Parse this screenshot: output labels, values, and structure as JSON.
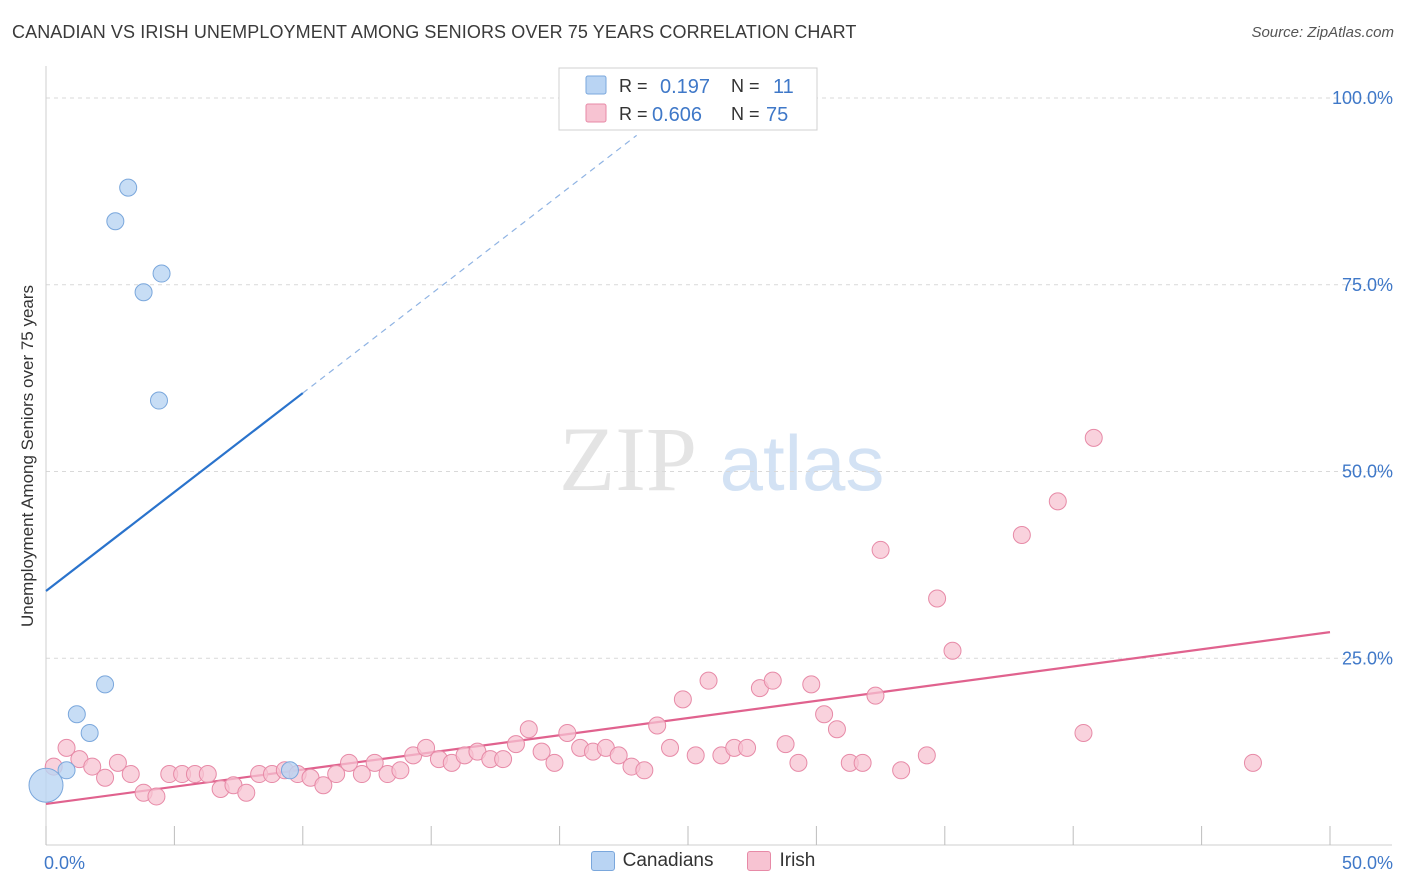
{
  "title": "CANADIAN VS IRISH UNEMPLOYMENT AMONG SENIORS OVER 75 YEARS CORRELATION CHART",
  "source": "Source: ZipAtlas.com",
  "watermark": {
    "zip": "ZIP",
    "atlas": "atlas"
  },
  "colors": {
    "canadians_fill": "#b9d4f3",
    "canadians_stroke": "#7aa7dc",
    "canadians_line": "#2a73cc",
    "irish_fill": "#f7c3d2",
    "irish_stroke": "#e78aa7",
    "irish_line": "#e0628e",
    "value_text": "#3f78c8",
    "grid": "#d9d9d9"
  },
  "legend": {
    "rows": [
      {
        "r_label": "R =",
        "r_value": "0.197",
        "n_label": "N =",
        "n_value": "11"
      },
      {
        "r_label": "R =",
        "r_value": "0.606",
        "n_label": "N =",
        "n_value": "75"
      }
    ]
  },
  "bottom_legend": [
    "Canadians",
    "Irish"
  ],
  "chart_data": {
    "type": "scatter",
    "ylabel": "Unemployment Among Seniors over 75 years",
    "xlim": [
      0,
      50
    ],
    "ylim": [
      0,
      100
    ],
    "x_tick_labels": [
      "0.0%",
      "50.0%"
    ],
    "y_tick_labels": [
      {
        "value": 100,
        "label": "100.0%"
      },
      {
        "value": 75,
        "label": "75.0%"
      },
      {
        "value": 50,
        "label": "50.0%"
      },
      {
        "value": 25,
        "label": "25.0%"
      }
    ],
    "y_gridlines": [
      100,
      75,
      50,
      25
    ],
    "series": [
      {
        "name": "Canadians",
        "points": [
          [
            0.0,
            8.0
          ],
          [
            0.8,
            10.0
          ],
          [
            1.2,
            17.5
          ],
          [
            1.7,
            15.0
          ],
          [
            2.3,
            21.5
          ],
          [
            2.7,
            83.5
          ],
          [
            3.2,
            88.0
          ],
          [
            3.8,
            74.0
          ],
          [
            4.4,
            59.5
          ],
          [
            4.5,
            76.5
          ],
          [
            9.5,
            10.0
          ]
        ],
        "trend": {
          "x0": 0,
          "y0": 34.0,
          "x1": 10.0,
          "y1": 60.5,
          "dash_x1": 23.0,
          "dash_y1": 95.0
        }
      },
      {
        "name": "Irish",
        "points": [
          [
            0.3,
            10.5
          ],
          [
            0.8,
            13.0
          ],
          [
            1.3,
            11.5
          ],
          [
            1.8,
            10.5
          ],
          [
            2.3,
            9.0
          ],
          [
            2.8,
            11.0
          ],
          [
            3.3,
            9.5
          ],
          [
            3.8,
            7.0
          ],
          [
            4.3,
            6.5
          ],
          [
            4.8,
            9.5
          ],
          [
            5.3,
            9.5
          ],
          [
            5.8,
            9.5
          ],
          [
            6.3,
            9.5
          ],
          [
            6.8,
            7.5
          ],
          [
            7.3,
            8.0
          ],
          [
            7.8,
            7.0
          ],
          [
            8.3,
            9.5
          ],
          [
            8.8,
            9.5
          ],
          [
            9.3,
            10.0
          ],
          [
            9.8,
            9.5
          ],
          [
            10.3,
            9.0
          ],
          [
            10.8,
            8.0
          ],
          [
            11.3,
            9.5
          ],
          [
            11.8,
            11.0
          ],
          [
            12.3,
            9.5
          ],
          [
            12.8,
            11.0
          ],
          [
            13.3,
            9.5
          ],
          [
            13.8,
            10.0
          ],
          [
            14.3,
            12.0
          ],
          [
            14.8,
            13.0
          ],
          [
            15.3,
            11.5
          ],
          [
            15.8,
            11.0
          ],
          [
            16.3,
            12.0
          ],
          [
            16.8,
            12.5
          ],
          [
            17.3,
            11.5
          ],
          [
            17.8,
            11.5
          ],
          [
            18.3,
            13.5
          ],
          [
            18.8,
            15.5
          ],
          [
            19.3,
            12.5
          ],
          [
            19.8,
            11.0
          ],
          [
            20.3,
            15.0
          ],
          [
            20.8,
            13.0
          ],
          [
            21.3,
            12.5
          ],
          [
            21.8,
            13.0
          ],
          [
            22.3,
            12.0
          ],
          [
            22.8,
            10.5
          ],
          [
            23.3,
            10.0
          ],
          [
            23.8,
            16.0
          ],
          [
            24.3,
            13.0
          ],
          [
            24.8,
            19.5
          ],
          [
            25.3,
            12.0
          ],
          [
            25.8,
            22.0
          ],
          [
            26.3,
            12.0
          ],
          [
            26.8,
            13.0
          ],
          [
            27.3,
            13.0
          ],
          [
            27.8,
            21.0
          ],
          [
            28.3,
            22.0
          ],
          [
            28.8,
            13.5
          ],
          [
            29.3,
            11.0
          ],
          [
            29.8,
            21.5
          ],
          [
            30.3,
            17.5
          ],
          [
            30.8,
            15.5
          ],
          [
            31.3,
            11.0
          ],
          [
            31.8,
            11.0
          ],
          [
            32.3,
            20.0
          ],
          [
            32.5,
            39.5
          ],
          [
            33.3,
            10.0
          ],
          [
            34.3,
            12.0
          ],
          [
            34.7,
            33.0
          ],
          [
            35.3,
            26.0
          ],
          [
            38.0,
            41.5
          ],
          [
            39.4,
            46.0
          ],
          [
            40.4,
            15.0
          ],
          [
            40.8,
            54.5
          ],
          [
            47.0,
            11.0
          ]
        ],
        "trend": {
          "x0": 0,
          "y0": 5.5,
          "x1": 50,
          "y1": 28.5
        }
      }
    ]
  }
}
